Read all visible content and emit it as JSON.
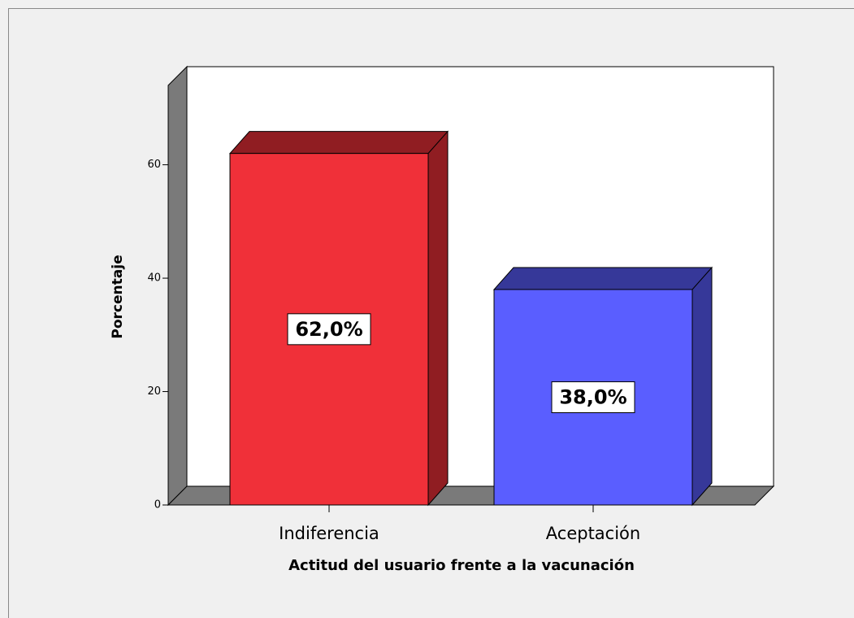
{
  "chart_data": {
    "type": "bar",
    "x_label": "Actitud del usuario frente a la vacunación",
    "y_label": "Porcentaje",
    "categories": [
      "Indiferencia",
      "Aceptación"
    ],
    "values": [
      62.0,
      38.0
    ],
    "value_labels": [
      "62,0%",
      "38,0%"
    ],
    "colors": [
      "#f03039",
      "#5a5eff"
    ],
    "ylim": [
      0,
      74
    ],
    "yticks": [
      0,
      20,
      40,
      60
    ]
  }
}
